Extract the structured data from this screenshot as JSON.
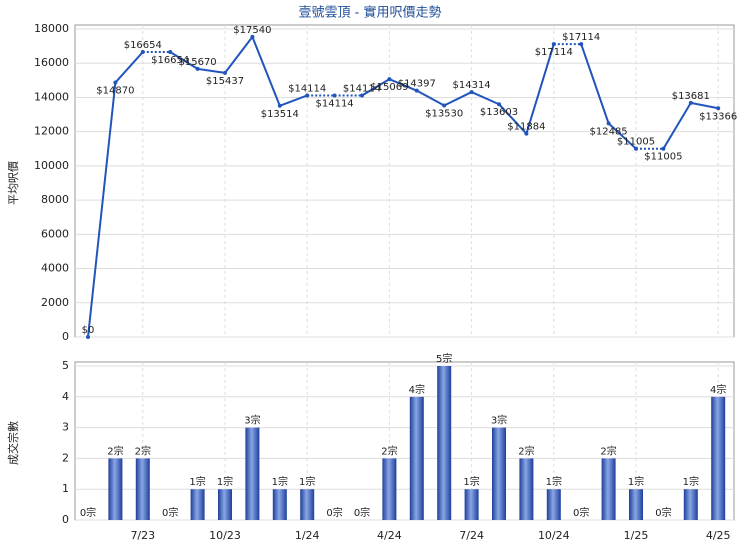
{
  "chart_data": [
    {
      "type": "line",
      "title": "壹號雲頂 - 實用呎價走勢",
      "y_label": "平均呎價",
      "color": "#2255bb",
      "grid": true,
      "ylim": [
        0,
        18000
      ],
      "yticks": [
        0,
        2000,
        4000,
        6000,
        8000,
        10000,
        12000,
        14000,
        16000,
        18000
      ],
      "values": [
        0,
        14870,
        16654,
        16654,
        15670,
        15437,
        17540,
        13514,
        14114,
        14114,
        14114,
        15069,
        14397,
        13530,
        14314,
        13603,
        11884,
        17114,
        17114,
        12485,
        11005,
        11005,
        13681,
        13366
      ],
      "value_labels": [
        "$0",
        "$14870",
        "$16654",
        "$16654",
        "$15670",
        "$15437",
        "$17540",
        "$13514",
        "$14114",
        "$14114",
        "$14114",
        "$15069",
        "$14397",
        "$13530",
        "$14314",
        "$13603",
        "$11884",
        "$17114",
        "$17114",
        "$12485",
        "$11005",
        "$11005",
        "$13681",
        "$13366"
      ]
    },
    {
      "type": "bar",
      "y_label": "成交宗數",
      "color": "#3a62c4",
      "grid": true,
      "categories": [
        null,
        null,
        "7/23",
        null,
        null,
        "10/23",
        null,
        null,
        "1/24",
        null,
        null,
        "4/24",
        null,
        null,
        "7/24",
        null,
        null,
        "10/24",
        null,
        null,
        "1/25",
        null,
        null,
        "4/25"
      ],
      "ylim": [
        0,
        5
      ],
      "yticks": [
        0,
        1,
        2,
        3,
        4,
        5
      ],
      "values": [
        0,
        2,
        2,
        0,
        1,
        1,
        3,
        1,
        1,
        0,
        0,
        2,
        4,
        5,
        1,
        3,
        2,
        1,
        0,
        2,
        1,
        0,
        1,
        4
      ],
      "value_labels": [
        "0宗",
        "2宗",
        "2宗",
        "0宗",
        "1宗",
        "1宗",
        "3宗",
        "1宗",
        "1宗",
        "0宗",
        "0宗",
        "2宗",
        "4宗",
        "5宗",
        "1宗",
        "3宗",
        "2宗",
        "1宗",
        "0宗",
        "2宗",
        "1宗",
        "0宗",
        "1宗",
        "4宗"
      ]
    }
  ]
}
